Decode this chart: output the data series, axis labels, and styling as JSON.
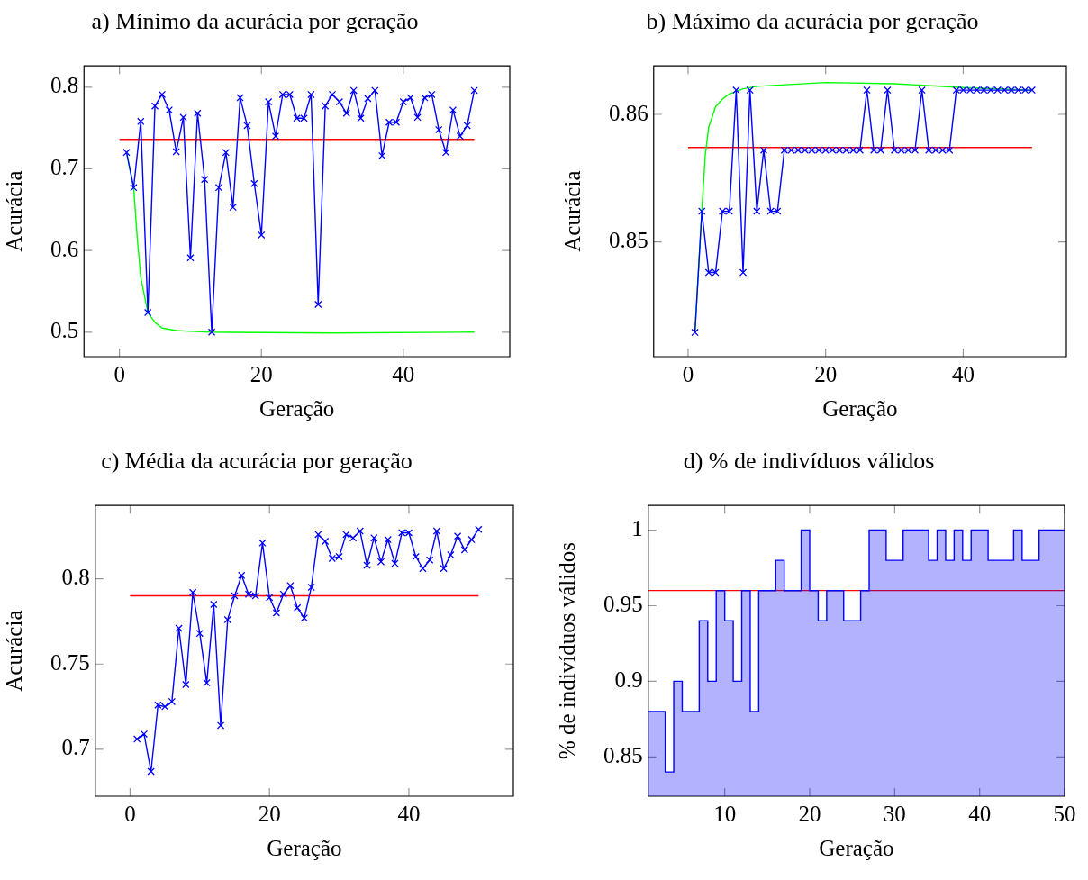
{
  "chart_data": [
    {
      "type": "line",
      "title": "a) Mínimo da acurácia por geração",
      "xlabel": "Geração",
      "ylabel": "Acurácia",
      "xlim": [
        -5,
        55
      ],
      "xticks": [
        0,
        20,
        40
      ],
      "ylim": [
        0.47,
        0.826
      ],
      "yticks": [
        0.5,
        0.6,
        0.7,
        0.8
      ],
      "series": [
        {
          "color": "#0000ff",
          "marker": "cross",
          "x": [
            1,
            2,
            3,
            4,
            5,
            6,
            7,
            8,
            9,
            10,
            11,
            12,
            13,
            14,
            15,
            16,
            17,
            18,
            19,
            20,
            21,
            22,
            23,
            24,
            25,
            26,
            27,
            28,
            29,
            30,
            31,
            32,
            33,
            34,
            35,
            36,
            37,
            38,
            39,
            40,
            41,
            42,
            43,
            44,
            45,
            46,
            47,
            48,
            49,
            50
          ],
          "values": [
            0.72,
            0.677,
            0.758,
            0.524,
            0.777,
            0.791,
            0.772,
            0.721,
            0.763,
            0.591,
            0.768,
            0.687,
            0.5,
            0.677,
            0.72,
            0.653,
            0.787,
            0.753,
            0.682,
            0.619,
            0.782,
            0.74,
            0.791,
            0.791,
            0.762,
            0.762,
            0.791,
            0.534,
            0.777,
            0.791,
            0.782,
            0.768,
            0.796,
            0.762,
            0.786,
            0.796,
            0.716,
            0.757,
            0.757,
            0.782,
            0.787,
            0.763,
            0.787,
            0.791,
            0.748,
            0.72,
            0.772,
            0.74,
            0.753,
            0.796
          ]
        },
        {
          "color": "#00ff00",
          "marker": "none",
          "x": [
            1,
            2,
            2.5,
            3,
            4,
            5,
            6,
            8,
            10,
            13,
            30,
            50
          ],
          "values": [
            0.72,
            0.677,
            0.616,
            0.567,
            0.524,
            0.512,
            0.505,
            0.502,
            0.501,
            0.5,
            0.499,
            0.5
          ]
        },
        {
          "color": "#ff0000",
          "marker": "none",
          "x": [
            0,
            50
          ],
          "values": [
            0.736,
            0.736
          ]
        }
      ]
    },
    {
      "type": "line",
      "title": "b) Máximo da acurácia por geração",
      "xlabel": "Geração",
      "ylabel": "Acurácia",
      "xlim": [
        -5,
        55
      ],
      "xticks": [
        0,
        20,
        40
      ],
      "ylim": [
        0.841,
        0.8638
      ],
      "yticks": [
        0.85,
        0.86
      ],
      "series": [
        {
          "color": "#0000ff",
          "marker": "cross",
          "x": [
            1,
            2,
            3,
            4,
            5,
            6,
            7,
            8,
            9,
            10,
            11,
            12,
            13,
            14,
            15,
            16,
            17,
            18,
            19,
            20,
            21,
            22,
            23,
            24,
            25,
            26,
            27,
            28,
            29,
            30,
            31,
            32,
            33,
            34,
            35,
            36,
            37,
            38,
            39,
            40,
            41,
            42,
            43,
            44,
            45,
            46,
            47,
            48,
            49,
            50
          ],
          "values": [
            0.8429,
            0.8524,
            0.8476,
            0.8476,
            0.8524,
            0.8524,
            0.8619,
            0.8476,
            0.8619,
            0.8524,
            0.8572,
            0.8524,
            0.8524,
            0.8572,
            0.8572,
            0.8572,
            0.8572,
            0.8572,
            0.8572,
            0.8572,
            0.8572,
            0.8572,
            0.8572,
            0.8572,
            0.8572,
            0.8619,
            0.8572,
            0.8572,
            0.8619,
            0.8572,
            0.8572,
            0.8572,
            0.8572,
            0.8619,
            0.8572,
            0.8572,
            0.8572,
            0.8572,
            0.8619,
            0.8619,
            0.8619,
            0.8619,
            0.8619,
            0.8619,
            0.8619,
            0.8619,
            0.8619,
            0.8619,
            0.8619,
            0.8619
          ]
        },
        {
          "color": "#00ff00",
          "marker": "none",
          "x": [
            1,
            2,
            2.5,
            3,
            4,
            5,
            6,
            8,
            10,
            20,
            30,
            40,
            50
          ],
          "values": [
            0.8429,
            0.8524,
            0.8568,
            0.859,
            0.8606,
            0.8612,
            0.8616,
            0.862,
            0.8622,
            0.8625,
            0.8624,
            0.8621,
            0.8619
          ]
        },
        {
          "color": "#ff0000",
          "marker": "none",
          "x": [
            0,
            50
          ],
          "values": [
            0.8574,
            0.8574
          ]
        }
      ]
    },
    {
      "type": "line",
      "title": "c) Média da acurácia por geração",
      "xlabel": "Geração",
      "ylabel": "Acurácia",
      "xlim": [
        -5,
        55
      ],
      "xticks": [
        0,
        20,
        40
      ],
      "ylim": [
        0.6725,
        0.843
      ],
      "yticks": [
        0.7,
        0.75,
        0.8
      ],
      "series": [
        {
          "color": "#0000ff",
          "marker": "cross",
          "x": [
            1,
            2,
            3,
            4,
            5,
            6,
            7,
            8,
            9,
            10,
            11,
            12,
            13,
            14,
            15,
            16,
            17,
            18,
            19,
            20,
            21,
            22,
            23,
            24,
            25,
            26,
            27,
            28,
            29,
            30,
            31,
            32,
            33,
            34,
            35,
            36,
            37,
            38,
            39,
            40,
            41,
            42,
            43,
            44,
            45,
            46,
            47,
            48,
            49,
            50
          ],
          "values": [
            0.706,
            0.709,
            0.687,
            0.726,
            0.725,
            0.728,
            0.771,
            0.738,
            0.792,
            0.768,
            0.739,
            0.785,
            0.714,
            0.776,
            0.79,
            0.802,
            0.791,
            0.79,
            0.821,
            0.789,
            0.78,
            0.791,
            0.796,
            0.783,
            0.777,
            0.795,
            0.826,
            0.822,
            0.812,
            0.813,
            0.826,
            0.824,
            0.828,
            0.808,
            0.824,
            0.81,
            0.823,
            0.809,
            0.827,
            0.827,
            0.813,
            0.806,
            0.811,
            0.828,
            0.806,
            0.814,
            0.825,
            0.817,
            0.823,
            0.829
          ]
        },
        {
          "color": "#ff0000",
          "marker": "none",
          "x": [
            0,
            50
          ],
          "values": [
            0.79,
            0.79
          ]
        }
      ]
    },
    {
      "type": "area",
      "title": "d) % de indivíduos válidos",
      "xlabel": "Geração",
      "ylabel": "% de indivíduos válidos",
      "xlim": [
        1,
        50
      ],
      "xticks": [
        10,
        20,
        30,
        40,
        50
      ],
      "ylim": [
        0.824,
        1.0163
      ],
      "yticks": [
        0.85,
        0.9,
        0.95,
        1
      ],
      "series": [
        {
          "color": "#0000ff",
          "x": [
            1,
            3,
            3,
            4,
            4,
            5,
            5,
            7,
            7,
            8,
            8,
            9,
            9,
            10,
            10,
            11,
            11,
            12,
            12,
            13,
            13,
            14,
            14,
            16,
            16,
            17,
            17,
            19,
            19,
            20,
            20,
            21,
            21,
            22,
            22,
            24,
            24,
            26,
            26,
            27,
            27,
            29,
            29,
            31,
            31,
            34,
            34,
            35,
            35,
            36,
            36,
            37,
            37,
            38,
            38,
            39,
            39,
            41,
            41,
            44,
            44,
            45,
            45,
            47,
            47,
            50
          ],
          "values": [
            0.88,
            0.88,
            0.84,
            0.84,
            0.9,
            0.9,
            0.88,
            0.88,
            0.94,
            0.94,
            0.9,
            0.9,
            0.96,
            0.96,
            0.94,
            0.94,
            0.9,
            0.9,
            0.96,
            0.96,
            0.88,
            0.88,
            0.96,
            0.96,
            0.98,
            0.98,
            0.96,
            0.96,
            1,
            1,
            0.96,
            0.96,
            0.94,
            0.94,
            0.96,
            0.96,
            0.94,
            0.94,
            0.96,
            0.96,
            1,
            1,
            0.98,
            0.98,
            1,
            1,
            0.98,
            0.98,
            1,
            1,
            0.98,
            0.98,
            1,
            1,
            0.98,
            0.98,
            1,
            1,
            0.98,
            0.98,
            1,
            1,
            0.98,
            0.98,
            1,
            1
          ]
        }
      ],
      "ref_lines": [
        {
          "axis": "y",
          "value": 0.96,
          "color": "#ff0000"
        }
      ]
    }
  ]
}
